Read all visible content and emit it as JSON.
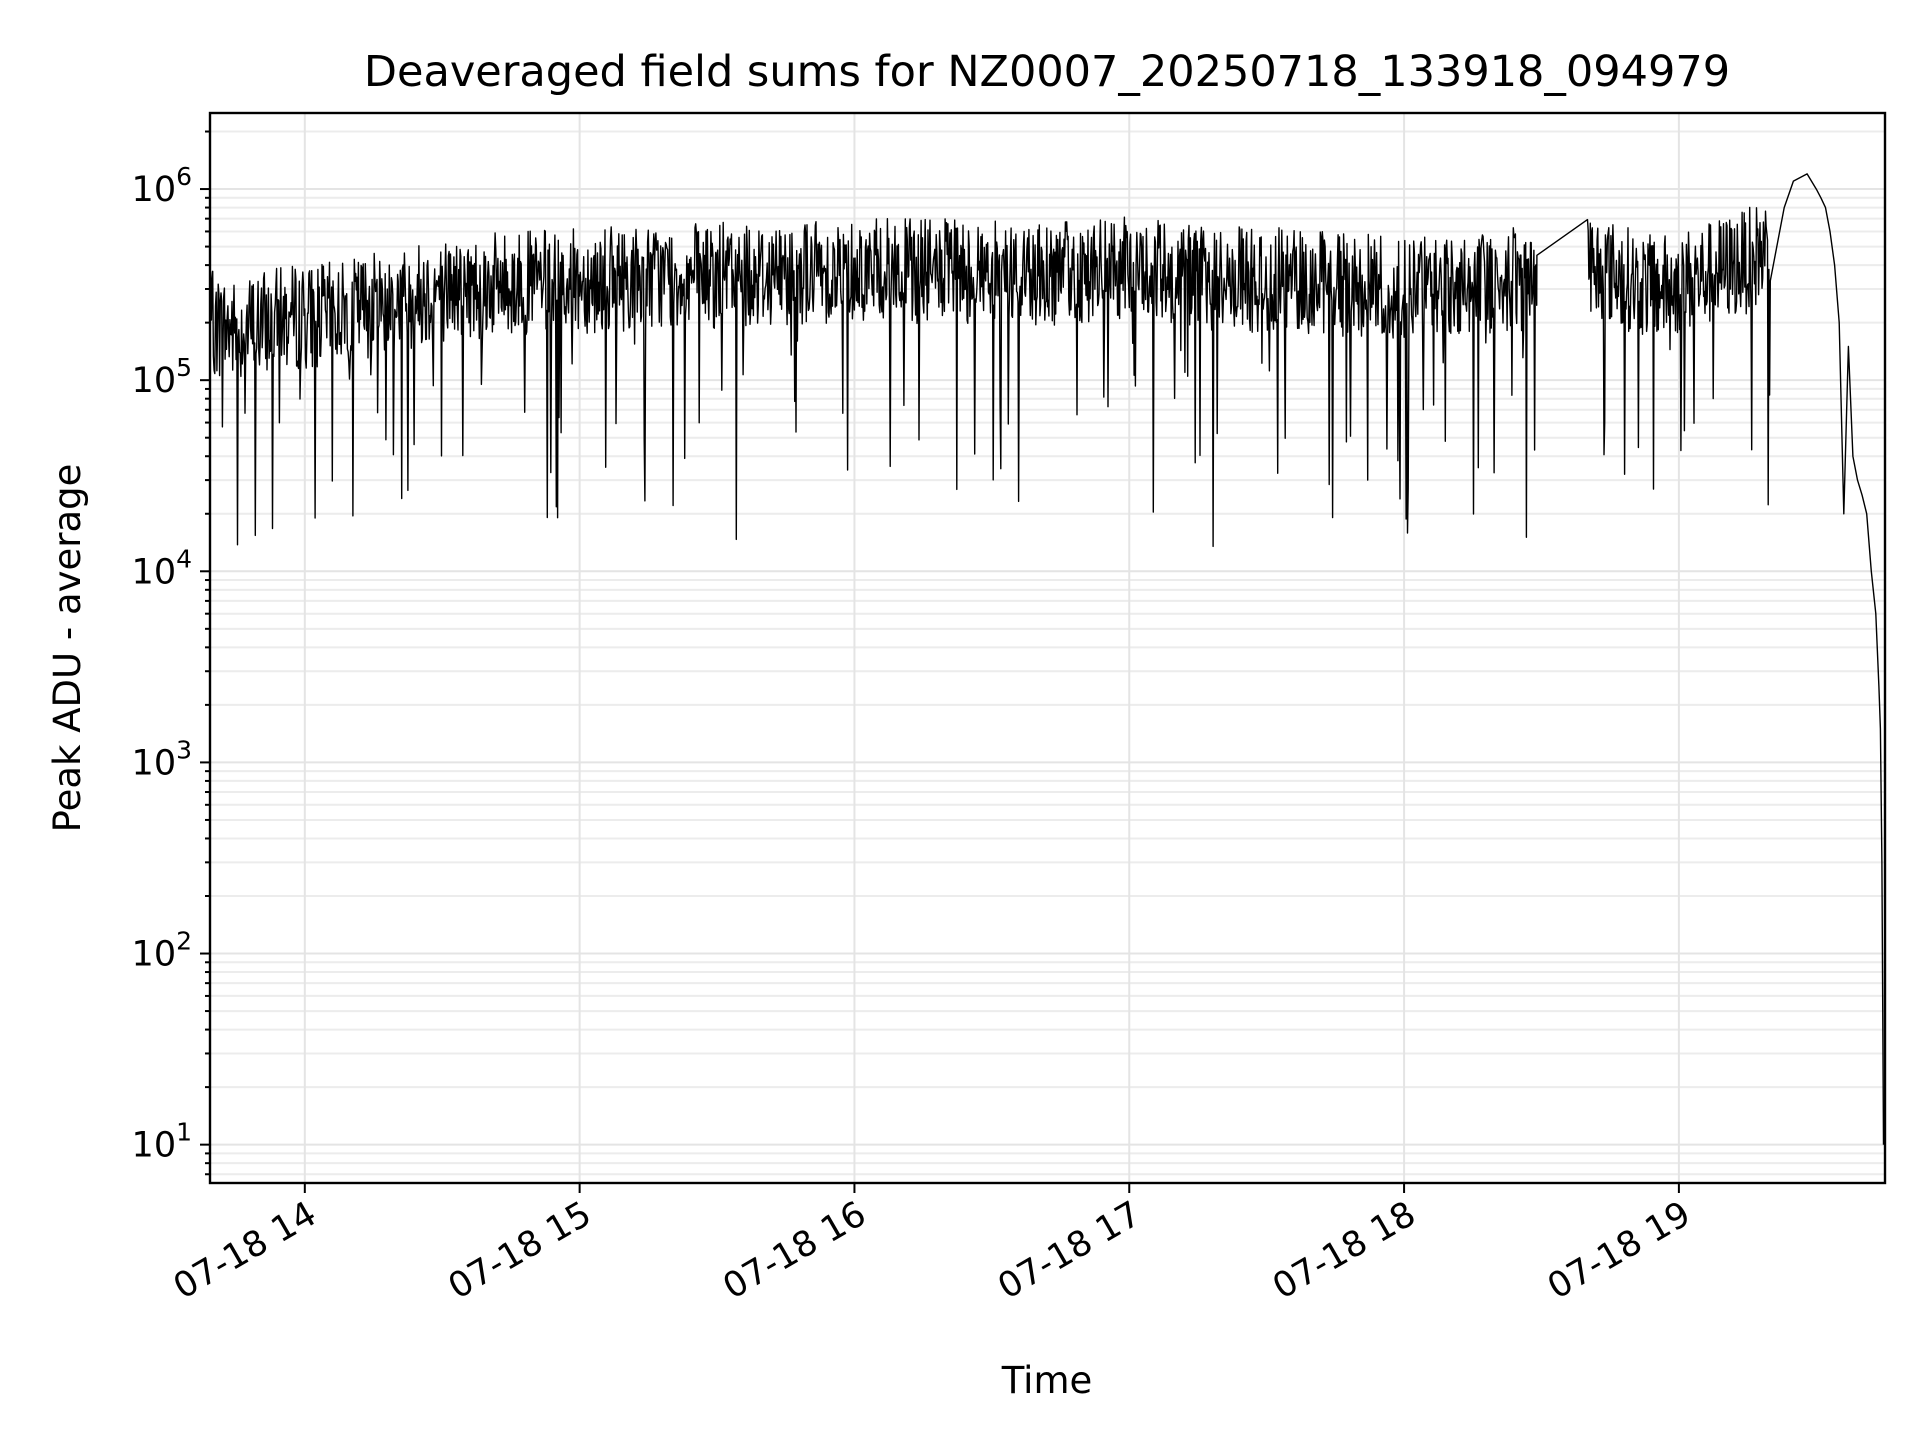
{
  "chart_data": {
    "type": "line",
    "title": "Deaveraged field sums for NZ0007_20250718_133918_094979",
    "xlabel": "Time",
    "ylabel": "Peak ADU - average",
    "yscale": "log",
    "ylim": [
      6.3,
      2500000
    ],
    "xlim": [
      "2025-07-18 13:39:18",
      "2025-07-18 19:45:00"
    ],
    "grid": true,
    "legend": "none",
    "x_ticks": [
      "2025-07-18 14:00",
      "2025-07-18 15:00",
      "2025-07-18 16:00",
      "2025-07-18 17:00",
      "2025-07-18 18:00",
      "2025-07-18 19:00"
    ],
    "x_tick_labels": [
      "07-18 14",
      "07-18 15",
      "07-18 16",
      "07-18 17",
      "07-18 18",
      "07-18 19"
    ],
    "y_ticks": [
      10,
      100,
      1000,
      10000,
      100000,
      1000000
    ],
    "y_tick_labels": [
      {
        "base": "10",
        "exp": "1"
      },
      {
        "base": "10",
        "exp": "2"
      },
      {
        "base": "10",
        "exp": "3"
      },
      {
        "base": "10",
        "exp": "4"
      },
      {
        "base": "10",
        "exp": "5"
      },
      {
        "base": "10",
        "exp": "6"
      }
    ],
    "line_color": "#000000",
    "series": [
      {
        "x": [
          "2025-07-18 13:39:18",
          "2025-07-18 13:45",
          "2025-07-18 13:55",
          "2025-07-18 14:05",
          "2025-07-18 14:15",
          "2025-07-18 14:30",
          "2025-07-18 14:45",
          "2025-07-18 15:00",
          "2025-07-18 15:20",
          "2025-07-18 15:40",
          "2025-07-18 16:00",
          "2025-07-18 16:20",
          "2025-07-18 16:40",
          "2025-07-18 17:00",
          "2025-07-18 17:20",
          "2025-07-18 17:40",
          "2025-07-18 18:00",
          "2025-07-18 18:15",
          "2025-07-18 18:28",
          "2025-07-18 18:29",
          "2025-07-18 18:40",
          "2025-07-18 18:41",
          "2025-07-18 18:55",
          "2025-07-18 19:05",
          "2025-07-18 19:15",
          "2025-07-18 19:20",
          "2025-07-18 19:23",
          "2025-07-18 19:25",
          "2025-07-18 19:28",
          "2025-07-18 19:30",
          "2025-07-18 19:31",
          "2025-07-18 19:32",
          "2025-07-18 19:33",
          "2025-07-18 19:34",
          "2025-07-18 19:35",
          "2025-07-18 19:36",
          "2025-07-18 19:37",
          "2025-07-18 19:38",
          "2025-07-18 19:39",
          "2025-07-18 19:40",
          "2025-07-18 19:41",
          "2025-07-18 19:42",
          "2025-07-18 19:43",
          "2025-07-18 19:43:40",
          "2025-07-18 19:44:00",
          "2025-07-18 19:44:20",
          "2025-07-18 19:44:40"
        ],
        "y": [
          200000,
          180000,
          210000,
          220000,
          250000,
          300000,
          320000,
          330000,
          350000,
          360000,
          380000,
          370000,
          360000,
          380000,
          340000,
          330000,
          300000,
          320000,
          340000,
          450000,
          440000,
          400000,
          300000,
          350000,
          420000,
          500000,
          800000,
          1100000,
          1200000,
          1000000,
          900000,
          800000,
          600000,
          400000,
          200000,
          20000,
          150000,
          40000,
          30000,
          25000,
          20000,
          10000,
          6000,
          2500,
          1500,
          300,
          10
        ]
      }
    ]
  }
}
